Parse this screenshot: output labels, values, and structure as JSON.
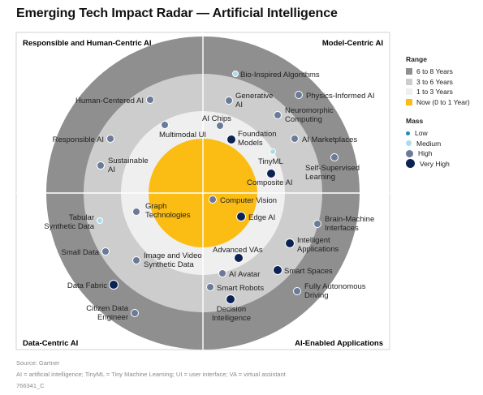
{
  "title": "Emerging Tech Impact Radar — Artificial Intelligence",
  "quadrants": {
    "top_left": "Responsible and Human-Centric AI",
    "top_right": "Model-Centric AI",
    "bottom_left": "Data-Centric AI",
    "bottom_right": "AI-Enabled Applications"
  },
  "legend": {
    "range_title": "Range",
    "range": [
      {
        "label": "6 to 8 Years",
        "color": "#8f8f8f"
      },
      {
        "label": "3 to 6 Years",
        "color": "#cdcdcd"
      },
      {
        "label": "1 to 3 Years",
        "color": "#efefef"
      },
      {
        "label": "Now (0 to 1 Year)",
        "color": "#fbbd13"
      }
    ],
    "mass_title": "Mass",
    "mass": [
      {
        "label": "Low",
        "color": "#1a8fb7",
        "level": "low"
      },
      {
        "label": "Medium",
        "color": "#a9dcef",
        "level": "medium"
      },
      {
        "label": "High",
        "color": "#6a7a99",
        "level": "high"
      },
      {
        "label": "Very High",
        "color": "#0d2254",
        "level": "very-high"
      }
    ]
  },
  "technologies": [
    {
      "label": "Bio-Inspired Algorithms",
      "mass": "medium"
    },
    {
      "label": "Human-Centered AI",
      "mass": "high"
    },
    {
      "label": "Generative AI",
      "mass": "high"
    },
    {
      "label": "Physics-Informed AI",
      "mass": "high"
    },
    {
      "label": "Neuromorphic Computing",
      "mass": "high"
    },
    {
      "label": "Multimodal UI",
      "mass": "high"
    },
    {
      "label": "AI Chips",
      "mass": "high"
    },
    {
      "label": "Foundation Models",
      "mass": "very-high"
    },
    {
      "label": "Responsible AI",
      "mass": "high"
    },
    {
      "label": "AI Marketplaces",
      "mass": "high"
    },
    {
      "label": "TinyML",
      "mass": "medium"
    },
    {
      "label": "Sustainable AI",
      "mass": "high"
    },
    {
      "label": "Self-Supervised Learning",
      "mass": "high"
    },
    {
      "label": "Composite AI",
      "mass": "very-high"
    },
    {
      "label": "Graph Technologies",
      "mass": "high"
    },
    {
      "label": "Computer Vision",
      "mass": "high"
    },
    {
      "label": "Tabular Synthetic Data",
      "mass": "medium"
    },
    {
      "label": "Edge AI",
      "mass": "very-high"
    },
    {
      "label": "Brain-Machine Interfaces",
      "mass": "high"
    },
    {
      "label": "Intelligent Applications",
      "mass": "very-high"
    },
    {
      "label": "Small Data",
      "mass": "high"
    },
    {
      "label": "Advanced VAs",
      "mass": "very-high"
    },
    {
      "label": "Image and Video Synthetic Data",
      "mass": "high"
    },
    {
      "label": "Smart Spaces",
      "mass": "very-high"
    },
    {
      "label": "AI Avatar",
      "mass": "high"
    },
    {
      "label": "Data Fabric",
      "mass": "very-high"
    },
    {
      "label": "Smart Robots",
      "mass": "high"
    },
    {
      "label": "Fully Autonomous Driving",
      "mass": "high"
    },
    {
      "label": "Decision Intelligence",
      "mass": "very-high"
    },
    {
      "label": "Citizen Data Engineer",
      "mass": "high"
    }
  ],
  "footer": {
    "source": "Source: Gartner",
    "abbreviations": "AI = artificial intelligence; TinyML = Tiny Machine Learning; UI = user interface; VA = virtual assistant",
    "id": "766341_C"
  }
}
